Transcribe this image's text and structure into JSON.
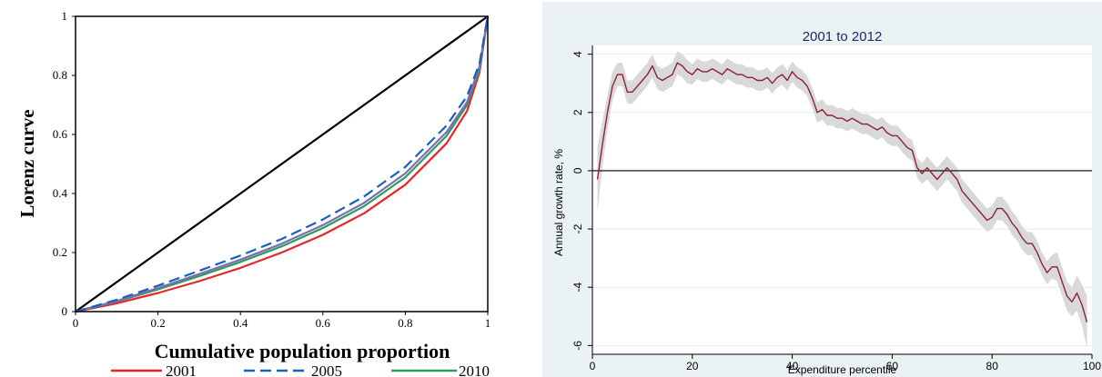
{
  "chart_data": [
    {
      "type": "line",
      "title": "",
      "xlabel": "Cumulative population proportion",
      "ylabel": "Lorenz curve",
      "xlim": [
        0,
        1
      ],
      "ylim": [
        0,
        1
      ],
      "x_ticks": [
        "0",
        "0.2",
        "0.4",
        "0.6",
        "0.8",
        "1"
      ],
      "y_ticks": [
        "0",
        "0.2",
        "0.4",
        "0.6",
        "0.8",
        "1"
      ],
      "grid": false,
      "legend_position": "bottom",
      "equality_line": {
        "x": [
          0,
          1
        ],
        "y": [
          0,
          1
        ],
        "color": "#000000"
      },
      "series": [
        {
          "name": "2001",
          "color": "#e8262a",
          "dash": "solid",
          "x": [
            0,
            0.1,
            0.2,
            0.3,
            0.4,
            0.5,
            0.6,
            0.7,
            0.8,
            0.9,
            0.95,
            0.98,
            1
          ],
          "y": [
            0,
            0.028,
            0.063,
            0.103,
            0.148,
            0.2,
            0.26,
            0.333,
            0.43,
            0.57,
            0.68,
            0.81,
            1
          ]
        },
        {
          "name": "2005",
          "color": "#1a5fbf",
          "dash": "dashed",
          "x": [
            0,
            0.1,
            0.2,
            0.3,
            0.4,
            0.5,
            0.6,
            0.7,
            0.8,
            0.9,
            0.95,
            0.98,
            1
          ],
          "y": [
            0,
            0.04,
            0.088,
            0.138,
            0.19,
            0.246,
            0.312,
            0.39,
            0.49,
            0.63,
            0.73,
            0.84,
            1
          ]
        },
        {
          "name": "2010",
          "color": "#2e9a5e",
          "dash": "solid",
          "x": [
            0,
            0.1,
            0.2,
            0.3,
            0.4,
            0.5,
            0.6,
            0.7,
            0.8,
            0.9,
            0.95,
            0.98,
            1
          ],
          "y": [
            0,
            0.034,
            0.075,
            0.12,
            0.168,
            0.221,
            0.283,
            0.357,
            0.455,
            0.595,
            0.7,
            0.82,
            1
          ]
        },
        {
          "name": "",
          "color": "#7a6fb0",
          "dash": "solid",
          "x": [
            0,
            0.1,
            0.2,
            0.3,
            0.4,
            0.5,
            0.6,
            0.7,
            0.8,
            0.9,
            0.95,
            0.98,
            1
          ],
          "y": [
            0,
            0.036,
            0.08,
            0.127,
            0.176,
            0.23,
            0.293,
            0.368,
            0.468,
            0.608,
            0.71,
            0.83,
            1
          ]
        }
      ]
    },
    {
      "type": "line",
      "title": "2001 to 2012",
      "xlabel": "Expenditure percentile",
      "ylabel": "Annual growth rate, %",
      "xlim": [
        0,
        100
      ],
      "ylim": [
        -6.3,
        4.3
      ],
      "x_ticks": [
        "0",
        "20",
        "40",
        "60",
        "80",
        "100"
      ],
      "y_ticks": [
        "-6",
        "-4",
        "-2",
        "0",
        "2",
        "4"
      ],
      "grid": true,
      "reference_line_y": 0,
      "series": [
        {
          "name": "",
          "color": "#8b2232",
          "band_color": "#d9d9d9",
          "x": [
            1,
            2,
            3,
            4,
            5,
            6,
            7,
            8,
            9,
            10,
            11,
            12,
            13,
            14,
            15,
            16,
            17,
            18,
            19,
            20,
            21,
            22,
            23,
            24,
            25,
            26,
            27,
            28,
            29,
            30,
            31,
            32,
            33,
            34,
            35,
            36,
            37,
            38,
            39,
            40,
            41,
            42,
            43,
            44,
            45,
            46,
            47,
            48,
            49,
            50,
            51,
            52,
            53,
            54,
            55,
            56,
            57,
            58,
            59,
            60,
            61,
            62,
            63,
            64,
            65,
            66,
            67,
            68,
            69,
            70,
            71,
            72,
            73,
            74,
            75,
            76,
            77,
            78,
            79,
            80,
            81,
            82,
            83,
            84,
            85,
            86,
            87,
            88,
            89,
            90,
            91,
            92,
            93,
            94,
            95,
            96,
            97,
            98,
            99
          ],
          "y": [
            -0.3,
            0.9,
            2.0,
            2.9,
            3.3,
            3.3,
            2.7,
            2.7,
            2.9,
            3.1,
            3.3,
            3.6,
            3.2,
            3.1,
            3.2,
            3.3,
            3.7,
            3.6,
            3.4,
            3.3,
            3.5,
            3.4,
            3.4,
            3.5,
            3.4,
            3.3,
            3.5,
            3.4,
            3.3,
            3.3,
            3.2,
            3.2,
            3.1,
            3.1,
            3.2,
            3.0,
            3.2,
            3.3,
            3.1,
            3.4,
            3.2,
            3.1,
            2.9,
            2.5,
            2.0,
            2.1,
            1.9,
            1.9,
            1.8,
            1.8,
            1.7,
            1.8,
            1.7,
            1.6,
            1.6,
            1.5,
            1.4,
            1.5,
            1.3,
            1.2,
            1.2,
            1.0,
            0.8,
            0.7,
            0.1,
            -0.1,
            0.1,
            -0.1,
            -0.3,
            -0.1,
            0.1,
            -0.1,
            -0.3,
            -0.7,
            -0.9,
            -1.1,
            -1.3,
            -1.5,
            -1.7,
            -1.6,
            -1.3,
            -1.3,
            -1.5,
            -1.8,
            -2.0,
            -2.3,
            -2.5,
            -2.5,
            -2.8,
            -3.2,
            -3.5,
            -3.3,
            -3.3,
            -3.8,
            -4.3,
            -4.5,
            -4.2,
            -4.6,
            -5.2
          ],
          "lower": [
            -1.4,
            0.1,
            1.4,
            2.4,
            2.9,
            2.9,
            2.3,
            2.3,
            2.5,
            2.7,
            2.9,
            3.2,
            2.8,
            2.7,
            2.8,
            2.9,
            3.3,
            3.2,
            3.0,
            2.95,
            3.15,
            3.05,
            3.05,
            3.15,
            3.05,
            2.95,
            3.15,
            3.05,
            2.95,
            2.95,
            2.85,
            2.85,
            2.75,
            2.75,
            2.85,
            2.65,
            2.85,
            2.95,
            2.75,
            3.05,
            2.85,
            2.75,
            2.55,
            2.15,
            1.65,
            1.75,
            1.55,
            1.55,
            1.45,
            1.45,
            1.35,
            1.45,
            1.35,
            1.25,
            1.25,
            1.15,
            1.05,
            1.15,
            0.95,
            0.85,
            0.85,
            0.65,
            0.45,
            0.35,
            -0.25,
            -0.45,
            -0.3,
            -0.5,
            -0.7,
            -0.5,
            -0.3,
            -0.5,
            -0.7,
            -1.1,
            -1.3,
            -1.5,
            -1.7,
            -1.9,
            -2.1,
            -2.0,
            -1.7,
            -1.7,
            -1.9,
            -2.2,
            -2.4,
            -2.7,
            -2.9,
            -2.9,
            -3.2,
            -3.6,
            -3.9,
            -3.7,
            -3.8,
            -4.3,
            -4.8,
            -5.0,
            -4.8,
            -5.3,
            -6.1
          ],
          "upper": [
            0.8,
            1.7,
            2.6,
            3.4,
            3.7,
            3.7,
            3.1,
            3.1,
            3.3,
            3.5,
            3.7,
            4.0,
            3.6,
            3.5,
            3.6,
            3.7,
            4.1,
            4.0,
            3.8,
            3.65,
            3.85,
            3.75,
            3.75,
            3.85,
            3.75,
            3.65,
            3.85,
            3.75,
            3.65,
            3.65,
            3.55,
            3.55,
            3.45,
            3.45,
            3.55,
            3.35,
            3.55,
            3.65,
            3.45,
            3.75,
            3.55,
            3.45,
            3.25,
            2.85,
            2.35,
            2.45,
            2.25,
            2.25,
            2.15,
            2.15,
            2.05,
            2.15,
            2.05,
            1.95,
            1.95,
            1.85,
            1.75,
            1.85,
            1.65,
            1.55,
            1.55,
            1.35,
            1.15,
            1.05,
            0.45,
            0.25,
            0.5,
            0.3,
            0.1,
            0.3,
            0.5,
            0.3,
            0.1,
            -0.3,
            -0.5,
            -0.7,
            -0.9,
            -1.1,
            -1.3,
            -1.2,
            -0.9,
            -0.9,
            -1.1,
            -1.4,
            -1.6,
            -1.9,
            -2.1,
            -2.1,
            -2.4,
            -2.8,
            -3.1,
            -2.9,
            -2.8,
            -3.3,
            -3.8,
            -4.0,
            -3.6,
            -3.9,
            -4.3
          ]
        }
      ]
    }
  ]
}
